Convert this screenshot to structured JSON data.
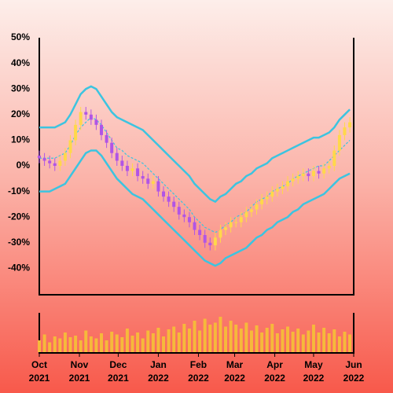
{
  "chart_data": {
    "type": "candlestick",
    "x": [
      0,
      4,
      8,
      12,
      16,
      20,
      24,
      28,
      32,
      36,
      40,
      44,
      48,
      52,
      56,
      60,
      64,
      68,
      72,
      76,
      80,
      84,
      88,
      92,
      96,
      100,
      104,
      108,
      112,
      116,
      120,
      124,
      128,
      132,
      136,
      140,
      144,
      148,
      152,
      156,
      160,
      164,
      168,
      172,
      176,
      180,
      184,
      188,
      192,
      196,
      200,
      204,
      208,
      212,
      216,
      220,
      224,
      228,
      232,
      236,
      240
    ],
    "open": [
      4,
      3,
      2,
      1,
      0,
      2,
      5,
      10,
      16,
      21,
      20,
      18,
      16,
      12,
      9,
      5,
      2,
      0,
      -2,
      -1,
      -4,
      -5,
      -7,
      -6,
      -10,
      -12,
      -14,
      -16,
      -19,
      -20,
      -22,
      -25,
      -27,
      -30,
      -31,
      -28,
      -25,
      -24,
      -22,
      -22,
      -20,
      -18,
      -17,
      -15,
      -13,
      -12,
      -10,
      -9,
      -8,
      -6,
      -5,
      -4,
      -3,
      -4,
      -2,
      -3,
      -1,
      0,
      6,
      12,
      15
    ],
    "high": [
      6,
      5,
      4,
      3,
      4,
      7,
      12,
      18,
      23,
      23,
      22,
      20,
      18,
      14,
      11,
      7,
      4,
      2,
      1,
      1,
      -2,
      -3,
      -4,
      -4,
      -8,
      -10,
      -12,
      -14,
      -17,
      -18,
      -20,
      -23,
      -25,
      -28,
      -26,
      -23,
      -22,
      -20,
      -20,
      -18,
      -16,
      -15,
      -13,
      -11,
      -10,
      -8,
      -7,
      -6,
      -4,
      -3,
      -2,
      -1,
      -1,
      0,
      0,
      1,
      2,
      8,
      14,
      17,
      19
    ],
    "low": [
      1,
      0,
      -1,
      -2,
      -2,
      0,
      3,
      8,
      14,
      18,
      16,
      14,
      10,
      7,
      3,
      0,
      -2,
      -4,
      -4,
      -6,
      -7,
      -9,
      -9,
      -12,
      -14,
      -16,
      -18,
      -21,
      -22,
      -24,
      -27,
      -29,
      -32,
      -33,
      -33,
      -30,
      -27,
      -26,
      -24,
      -24,
      -22,
      -20,
      -19,
      -17,
      -15,
      -14,
      -12,
      -11,
      -10,
      -8,
      -7,
      -6,
      -6,
      -6,
      -5,
      -5,
      -3,
      -2,
      4,
      10,
      13
    ],
    "close": [
      3,
      2,
      1,
      0,
      2,
      5,
      10,
      16,
      21,
      20,
      18,
      16,
      12,
      9,
      5,
      2,
      0,
      -2,
      -1,
      -4,
      -5,
      -7,
      -6,
      -10,
      -12,
      -14,
      -16,
      -19,
      -20,
      -22,
      -25,
      -27,
      -30,
      -31,
      -28,
      -25,
      -24,
      -22,
      -22,
      -20,
      -18,
      -17,
      -15,
      -13,
      -12,
      -10,
      -9,
      -8,
      -6,
      -5,
      -4,
      -3,
      -4,
      -2,
      -3,
      -1,
      0,
      6,
      12,
      15,
      17
    ],
    "up_color": "#ffd84a",
    "down_color": "#b155e6",
    "overlays": [
      {
        "color": "#3cc4e0",
        "dashed": false,
        "values": [
          15,
          15,
          15,
          15,
          16,
          17,
          20,
          24,
          28,
          30,
          31,
          30,
          27,
          24,
          21,
          19,
          18,
          17,
          16,
          15,
          14,
          12,
          10,
          8,
          6,
          4,
          2,
          0,
          -2,
          -4,
          -7,
          -9,
          -11,
          -13,
          -14,
          -12,
          -11,
          -9,
          -7,
          -6,
          -4,
          -3,
          -1,
          0,
          1,
          3,
          4,
          5,
          6,
          7,
          8,
          9,
          10,
          11,
          11,
          12,
          13,
          15,
          18,
          20,
          22
        ]
      },
      {
        "color": "#3cc4e0",
        "dashed": true,
        "values": [
          3,
          3,
          3,
          3,
          4,
          5,
          8,
          12,
          15,
          17,
          19,
          18,
          16,
          13,
          10,
          7,
          6,
          4,
          3,
          2,
          1,
          -1,
          -3,
          -5,
          -7,
          -9,
          -11,
          -13,
          -15,
          -17,
          -20,
          -22,
          -24,
          -25,
          -26,
          -25,
          -23,
          -22,
          -20,
          -19,
          -18,
          -16,
          -14,
          -13,
          -12,
          -10,
          -9,
          -8,
          -7,
          -5,
          -4,
          -3,
          -2,
          -1,
          0,
          0,
          2,
          4,
          6,
          8,
          10
        ]
      },
      {
        "color": "#3cc4e0",
        "dashed": false,
        "values": [
          -10,
          -10,
          -10,
          -9,
          -8,
          -7,
          -4,
          -1,
          2,
          5,
          6,
          6,
          4,
          1,
          -2,
          -5,
          -7,
          -9,
          -11,
          -12,
          -13,
          -15,
          -17,
          -19,
          -21,
          -23,
          -25,
          -27,
          -29,
          -31,
          -33,
          -35,
          -37,
          -38,
          -39,
          -38,
          -36,
          -35,
          -34,
          -33,
          -32,
          -30,
          -28,
          -27,
          -25,
          -24,
          -22,
          -21,
          -20,
          -18,
          -17,
          -15,
          -14,
          -13,
          -12,
          -11,
          -9,
          -7,
          -5,
          -4,
          -3
        ]
      }
    ],
    "volume": {
      "color": "#f6b93b",
      "ylim": [
        0,
        100
      ],
      "values": [
        30,
        45,
        25,
        40,
        35,
        50,
        38,
        42,
        30,
        55,
        40,
        35,
        48,
        30,
        52,
        45,
        38,
        60,
        42,
        50,
        35,
        55,
        48,
        62,
        40,
        58,
        65,
        50,
        72,
        60,
        80,
        55,
        85,
        70,
        75,
        90,
        65,
        80,
        70,
        60,
        75,
        55,
        68,
        50,
        62,
        72,
        48,
        58,
        65,
        52,
        60,
        45,
        55,
        70,
        50,
        62,
        48,
        58,
        40,
        52,
        45
      ]
    },
    "ylim": [
      -50,
      50
    ],
    "yticks": [
      {
        "value": -40,
        "label": "-40%"
      },
      {
        "value": -30,
        "label": "-30%"
      },
      {
        "value": -20,
        "label": "-20%"
      },
      {
        "value": -10,
        "label": "-10%"
      },
      {
        "value": 0,
        "label": "0%"
      },
      {
        "value": 10,
        "label": "10%"
      },
      {
        "value": 20,
        "label": "20%"
      },
      {
        "value": 30,
        "label": "30%"
      },
      {
        "value": 40,
        "label": "40%"
      },
      {
        "value": 50,
        "label": "50%"
      }
    ],
    "xlim": [
      0,
      243
    ],
    "xticks": [
      {
        "value": 0,
        "label": "Oct 2021"
      },
      {
        "value": 31,
        "label": "Nov 2021"
      },
      {
        "value": 61,
        "label": "Dec 2021"
      },
      {
        "value": 92,
        "label": "Jan 2022"
      },
      {
        "value": 123,
        "label": "Feb 2022"
      },
      {
        "value": 151,
        "label": "Mar 2022"
      },
      {
        "value": 182,
        "label": "Apr 2022"
      },
      {
        "value": 212,
        "label": "May 2022"
      },
      {
        "value": 243,
        "label": "Jun 2022"
      }
    ]
  }
}
